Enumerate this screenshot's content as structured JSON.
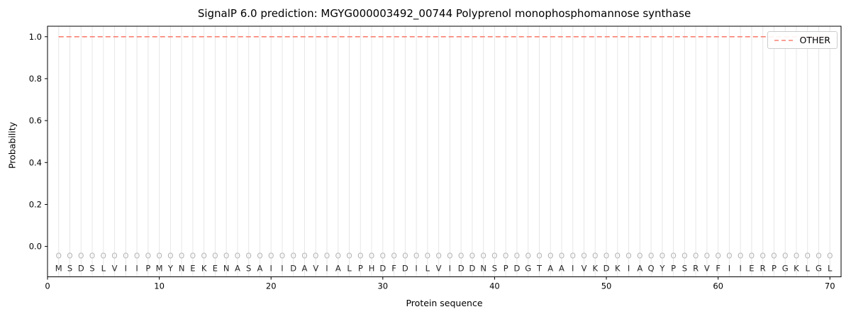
{
  "chart_data": {
    "type": "line",
    "title": "SignalP 6.0 prediction: MGYG000003492_00744 Polyprenol monophosphomannose synthase",
    "xlabel": "Protein sequence",
    "ylabel": "Probability",
    "xlim": [
      0,
      71
    ],
    "ylim": [
      -0.145,
      1.05
    ],
    "xticks": [
      0,
      10,
      20,
      30,
      40,
      50,
      60,
      70
    ],
    "yticks": [
      0.0,
      0.2,
      0.4,
      0.6,
      0.8,
      1.0
    ],
    "grid": {
      "vertical_per_residue": true,
      "color": "#e6e6e6"
    },
    "sequence": "MSDSLVIIPMYNEKENASAIIDAVIALPHDFDILVIDDNSPDGTAAIVKDKIAQYPSRVFIIERPGKLGL",
    "series": [
      {
        "name": "OTHER",
        "color": "#fa8072",
        "line_style": "dashed",
        "x_start": 1,
        "values": [
          1.0,
          1.0,
          1.0,
          1.0,
          1.0,
          1.0,
          1.0,
          1.0,
          1.0,
          1.0,
          1.0,
          1.0,
          1.0,
          1.0,
          1.0,
          1.0,
          1.0,
          1.0,
          1.0,
          1.0,
          1.0,
          1.0,
          1.0,
          1.0,
          1.0,
          1.0,
          1.0,
          1.0,
          1.0,
          1.0,
          1.0,
          1.0,
          1.0,
          1.0,
          1.0,
          1.0,
          1.0,
          1.0,
          1.0,
          1.0,
          1.0,
          1.0,
          1.0,
          1.0,
          1.0,
          1.0,
          1.0,
          1.0,
          1.0,
          1.0,
          1.0,
          1.0,
          1.0,
          1.0,
          1.0,
          1.0,
          1.0,
          1.0,
          1.0,
          1.0,
          1.0,
          1.0,
          1.0,
          1.0,
          1.0,
          1.0,
          1.0,
          1.0,
          1.0,
          1.0
        ]
      }
    ],
    "residue_markers": {
      "symbol": "O",
      "y": -0.045,
      "color": "#b3b3b3"
    },
    "residue_letters_y": -0.105,
    "residue_letter_color": "#262626",
    "legend": {
      "position": "upper right",
      "entries": [
        {
          "label": "OTHER",
          "color": "#fa8072",
          "dashed": true
        }
      ]
    }
  }
}
